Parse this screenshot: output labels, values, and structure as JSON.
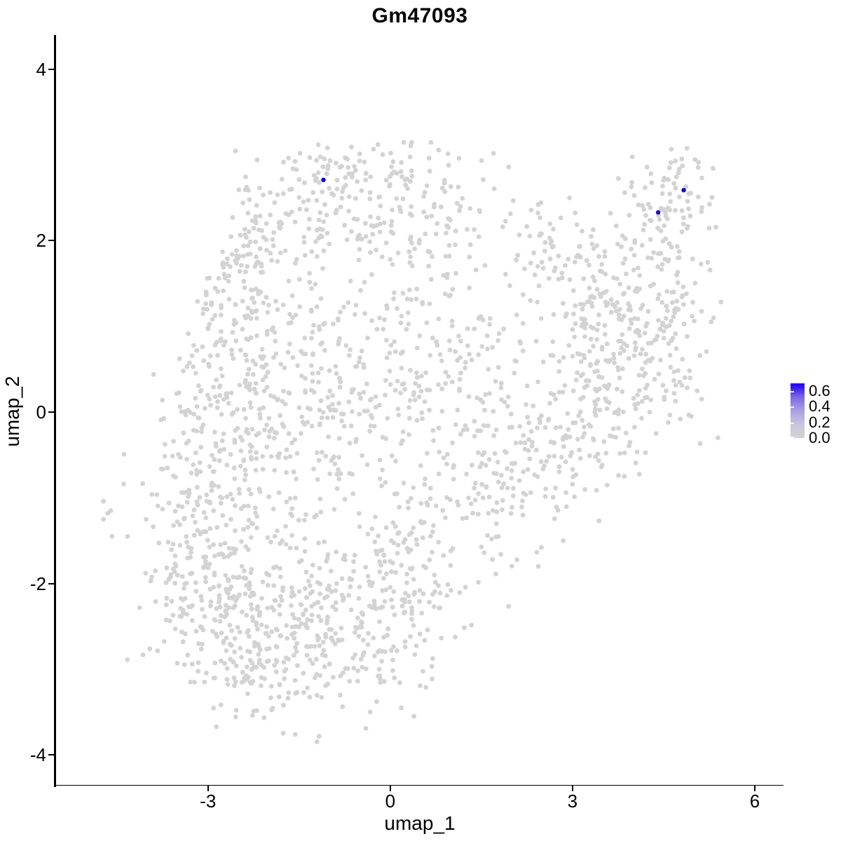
{
  "plot": {
    "title": "Gm47093",
    "x_axis": {
      "title": "umap_1",
      "ticks": [
        {
          "label": "-3",
          "value": -3
        },
        {
          "label": "0",
          "value": 0
        },
        {
          "label": "3",
          "value": 3
        },
        {
          "label": "6",
          "value": 6
        }
      ]
    },
    "y_axis": {
      "title": "umap_2",
      "ticks": [
        {
          "label": "4",
          "value": 4
        },
        {
          "label": "2",
          "value": 2
        },
        {
          "label": "0",
          "value": 0
        },
        {
          "label": "-2",
          "value": -2
        },
        {
          "label": "-4",
          "value": -4
        }
      ]
    }
  },
  "legend": {
    "labels": [
      {
        "label": "0.6",
        "value": 0.6
      },
      {
        "label": "0.4",
        "value": 0.4
      },
      {
        "label": "0.2",
        "value": 0.2
      },
      {
        "label": "0.0",
        "value": 0.0
      }
    ],
    "max_value": 0.7,
    "gradient_stops": [
      "#d3d3d3 0%",
      "#c9c5de 25%",
      "#ab9fe2 50%",
      "#7c66ea 75%",
      "#3a1bf0 92%",
      "#1a00f0 100%"
    ],
    "low_color": "#d3d3d3",
    "high_color": "#0b00ea"
  },
  "chart_data": {
    "type": "scatter",
    "title": "Gm47093",
    "xlabel": "umap_1",
    "ylabel": "umap_2",
    "xlim": [
      -5.5,
      6.473
    ],
    "ylim": [
      -4.35,
      4.4
    ],
    "grid": false,
    "legend_position": "right",
    "point_radius_px": 3.4,
    "point_color_low": "#d3d3d3",
    "point_color_high": "#0b00ea",
    "seed": 42,
    "highlighted_points": [
      {
        "x": -1.1,
        "y": 2.71,
        "value": 0.65,
        "color": "#0b00ea"
      },
      {
        "x": 4.83,
        "y": 2.59,
        "value": 0.6,
        "color": "#0b00ea"
      },
      {
        "x": 4.41,
        "y": 2.33,
        "value": 0.55,
        "color": "#1d0cd8"
      }
    ],
    "outlier_points": [
      {
        "x": -4.72,
        "y": -1.04
      },
      {
        "x": -4.65,
        "y": -1.18
      },
      {
        "x": -4.6,
        "y": -1.15
      },
      {
        "x": -4.72,
        "y": -1.25
      },
      {
        "x": -4.58,
        "y": -1.45
      },
      {
        "x": 1.7,
        "y": 3.02
      },
      {
        "x": 1.95,
        "y": 2.86
      },
      {
        "x": 2.95,
        "y": 2.5
      }
    ],
    "background_clusters": [
      {
        "cx": -0.9,
        "cy": 2.42,
        "sx": 1.0,
        "sy": 0.36,
        "n": 150
      },
      {
        "cx": -0.5,
        "cy": 2.88,
        "sx": 0.75,
        "sy": 0.18,
        "n": 55
      },
      {
        "cx": 0.9,
        "cy": 2.25,
        "sx": 0.5,
        "sy": 0.35,
        "n": 50
      },
      {
        "cx": -2.55,
        "cy": 1.7,
        "sx": 0.45,
        "sy": 0.45,
        "n": 70
      },
      {
        "cx": -2.3,
        "cy": 0.7,
        "sx": 0.65,
        "sy": 0.8,
        "n": 220
      },
      {
        "cx": -3.0,
        "cy": -0.9,
        "sx": 0.65,
        "sy": 0.65,
        "n": 200
      },
      {
        "cx": -0.5,
        "cy": 0.1,
        "sx": 0.95,
        "sy": 0.95,
        "n": 300
      },
      {
        "cx": 1.2,
        "cy": 0.55,
        "sx": 0.55,
        "sy": 0.65,
        "n": 120
      },
      {
        "cx": -2.7,
        "cy": -2.3,
        "sx": 0.8,
        "sy": 0.55,
        "n": 280
      },
      {
        "cx": -0.8,
        "cy": -2.45,
        "sx": 0.75,
        "sy": 0.5,
        "n": 230
      },
      {
        "cx": 0.35,
        "cy": -1.95,
        "sx": 0.5,
        "sy": 0.55,
        "n": 100
      },
      {
        "cx": -1.9,
        "cy": -3.15,
        "sx": 0.55,
        "sy": 0.25,
        "n": 45
      },
      {
        "cx": 1.95,
        "cy": -1.05,
        "sx": 0.45,
        "sy": 0.45,
        "n": 80
      },
      {
        "cx": 2.75,
        "cy": -0.35,
        "sx": 0.5,
        "sy": 0.45,
        "n": 90
      },
      {
        "cx": 3.5,
        "cy": 0.3,
        "sx": 0.45,
        "sy": 0.5,
        "n": 90
      },
      {
        "cx": 4.35,
        "cy": 1.0,
        "sx": 0.5,
        "sy": 0.7,
        "n": 190
      },
      {
        "cx": 3.3,
        "cy": 1.3,
        "sx": 0.5,
        "sy": 0.55,
        "n": 110
      },
      {
        "cx": 4.55,
        "cy": 2.5,
        "sx": 0.38,
        "sy": 0.32,
        "n": 80
      },
      {
        "cx": 2.6,
        "cy": 1.9,
        "sx": 0.5,
        "sy": 0.4,
        "n": 40
      }
    ]
  }
}
